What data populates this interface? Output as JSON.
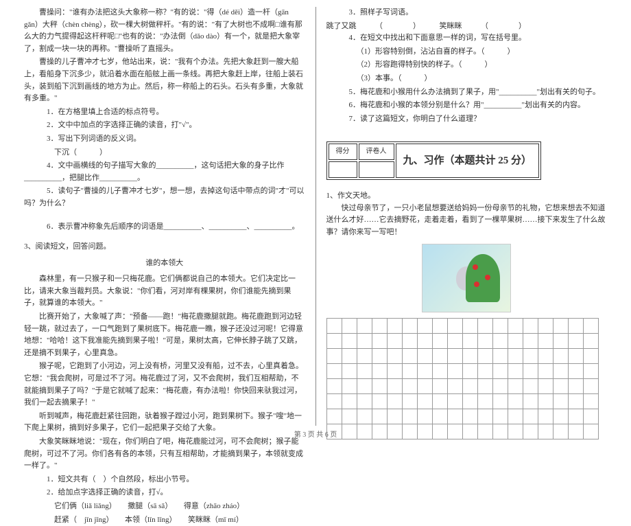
{
  "left": {
    "p1": "曹操问：\"谁有办法把这头大象称一称？\"有的说：\"得（dé  děi）造一杆（gān  gǎn）大秤（chèn  chèng），砍一棵大树做秤杆。\"有的说：\"有了大树也不成啊□谁有那么大的力气提得起这杆秤呢□\"也有的说：\"办法倒（dǎo  dào）有一个，就是把大象宰了，割成一块一块的再称。\"曹操听了直摇头。",
    "p2": "曹操的儿子曹冲才七岁，他站出来，说：\"我有个办法。先把大象赶到一艘大船上，看船身下沉多少，就沿着水面在船舷上画一条线。再把大象赶上岸，往船上装石头，装到船下沉到画线的地方为止。然后，称一称船上的石头。石头有多重，大象就有多重。\"",
    "q1": "1．在方格里填上合适的标点符号。",
    "q2": "2．文中中加点的字选择正确的读音，打\"√\"。",
    "q3": "3．写出下列词语的反义词。",
    "q3line": "下沉（　　　）",
    "q4": "4．文中画横线的句子描写大象的__________，这句话把大象的身子比作__________，把腿比作__________。",
    "q5": "5．读句子\"曹操的儿子曹冲才七岁\"，想一想，去掉这句话中带点的词\"才\"可以吗？为什么？",
    "q6": "6．表示曹冲称象先后顺序的词语是__________、__________、__________。",
    "reading3": "3、阅读短文，回答问题。",
    "storyTitle": "谁的本领大",
    "s1": "森林里，有一只猴子和一只梅花鹿。它们俩都说自己的本领大。它们决定比一比，请来大象当裁判员。大象说：\"你们看，河对岸有棵果树，你们谁能先摘到果子，就算谁的本领大。\"",
    "s2": "比赛开始了，大象喊了声：\"预备——跑！\"梅花鹿撒腿就跑。梅花鹿跑到河边轻轻一跳，就过去了，一口气跑到了果树底下。梅花鹿一瞧，猴子还没过河呢！它得意地想：\"哈哈！这下我准能先摘到果子啦！\"可是，果树太高，它伸长脖子跳了又跳，还是摘不到果子，心里真急。",
    "s3": "猴子呢，它跑到了小河边，河上没有桥，河里又没有船，过不去，心里真着急。它想：\"我会爬树，可是过不了河。梅花鹿过了河，又不会爬树，我们互相帮助，不就能摘到果子了吗？\"于是它就喊了起来：\"梅花鹿，有办法啦！你快回来驮我过河，我们一起去摘果子！\"",
    "s4": "听到喊声，梅花鹿赶紧往回跑，驮着猴子蹚过小河，跑到果树下。猴子\"嗖\"地一下爬上果树，摘到好多果子，它们一起把果子交给了大象。",
    "s5": "大象笑眯眯地说：\"现在，你们明白了吧，梅花鹿能过河，可不会爬树；猴子能爬树，可过不了河。你们各有各的本领，只有互相帮助，才能摘到果子，本领就变成一样了。\"",
    "ex1": "1．短文共有（　）个自然段，标出小节号。",
    "ex2": "2．给加点字选择正确的读音，打√。",
    "ex2a": "它们俩（liǎ  liǎng）　　撒腿（sā  sǎ）　　得意（zhāo  zháo）",
    "ex2b": "赶紧（　jǐn  jǐng）　　本领（lǐn  lǐng）　　笑眯眯（mī  mí）"
  },
  "right": {
    "ex3": "3．照样子写词语。",
    "ex3a": "跳了又跳　　　（　　　　）　　　笑眯眯　　　（　　　　）",
    "ex4": "4．在短文中找出和下面意思一样的词，写在括号里。",
    "ex4a": "（1）形容特别倒，沾沾自喜的样子。（　　　）",
    "ex4b": "（2）形容跑得特别快的样子。（　　　）",
    "ex4c": "（3）本事。（　　　）",
    "ex5": "5．梅花鹿和小猴用什么办法摘到了果子，用\"__________\"划出有关的句子。",
    "ex6": "6．梅花鹿和小猴的本领分别是什么？用\"__________\"划出有关的内容。",
    "ex7": "7．读了这篇短文，你明白了什么道理？",
    "scoreLabel1": "得分",
    "scoreLabel2": "评卷人",
    "section9": "九、习作（本题共计 25 分）",
    "essay1": "1、作文天地。",
    "essayPrompt": "快过母亲节了，一只小老鼠想要送给妈妈一份母亲节的礼物，它想来想去不知道送什么才好……它去摘野花，走着走着，看到了一棵苹果树……接下来发生了什么故事？请你来写一写吧！"
  },
  "footer": "第 3 页  共 6 页"
}
